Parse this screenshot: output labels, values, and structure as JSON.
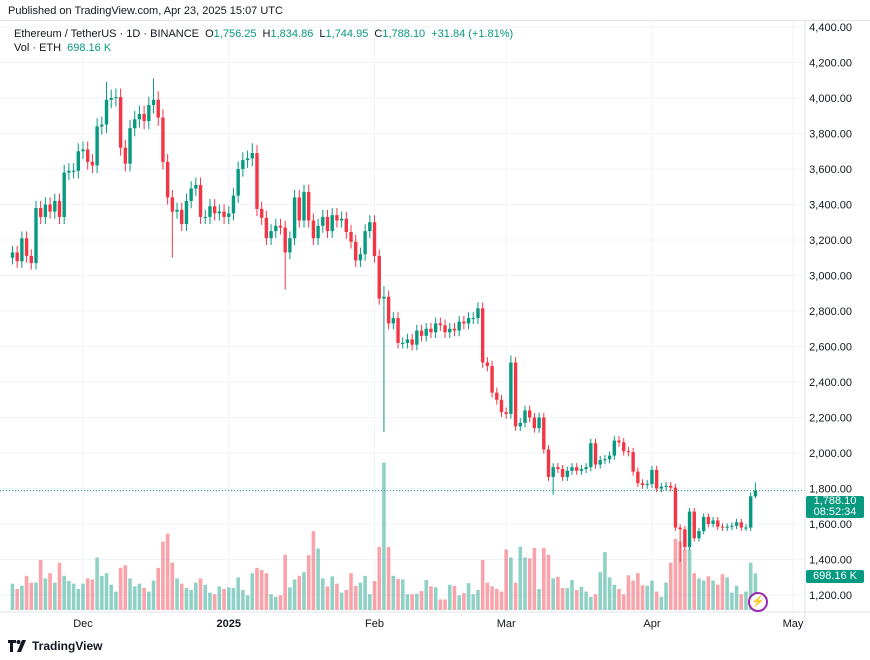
{
  "published": "Published on TradingView.com, Apr 23, 2025 15:07 UTC",
  "legend": {
    "symbol": "Ethereum / TetherUS · 1D · BINANCE",
    "o_label": "O",
    "o": "1,756.25",
    "h_label": "H",
    "h": "1,834.86",
    "l_label": "L",
    "l": "1,744.95",
    "c_label": "C",
    "c": "1,788.10",
    "change": "+31.84 (+1.81%)",
    "vol_label": "Vol · ETH",
    "vol": "698.16 K"
  },
  "price_tag": {
    "price": "1,788.10",
    "countdown": "08:52:34"
  },
  "volume_tag": "698.16 K",
  "logo": "TradingView",
  "colors": {
    "up": "#089981",
    "down": "#f23645",
    "grid": "#f0f3fa"
  },
  "chart_data": {
    "type": "candlestick",
    "ylim": [
      1100,
      4450
    ],
    "y_ticks": [
      "4,400.00",
      "4,200.00",
      "4,000.00",
      "3,800.00",
      "3,600.00",
      "3,400.00",
      "3,200.00",
      "3,000.00",
      "2,800.00",
      "2,600.00",
      "2,400.00",
      "2,200.00",
      "2,000.00",
      "1,800.00",
      "1,600.00",
      "1,400.00",
      "1,200.00"
    ],
    "x_ticks": [
      {
        "label": "Dec",
        "date": "2024-12-01",
        "bold": false
      },
      {
        "label": "2025",
        "date": "2025-01-01",
        "bold": true
      },
      {
        "label": "Feb",
        "date": "2025-02-01",
        "bold": false
      },
      {
        "label": "Mar",
        "date": "2025-03-01",
        "bold": false
      },
      {
        "label": "Apr",
        "date": "2025-04-01",
        "bold": false
      },
      {
        "label": "May",
        "date": "2025-05-01",
        "bold": false
      }
    ],
    "last_price": 1788.1,
    "first_open": 3100,
    "months": [
      {
        "month": "2024-11",
        "first_day": 16,
        "close": [
          3130,
          3080,
          3210,
          3110,
          3070,
          3380,
          3330,
          3400,
          3360,
          3420,
          3330,
          3580,
          3590,
          3590,
          3700
        ],
        "volume_k": [
          500,
          400,
          460,
          650,
          520,
          520,
          950,
          600,
          700,
          520,
          900,
          650,
          550,
          500,
          400
        ]
      },
      {
        "month": "2024-12",
        "first_day": 1,
        "close": [
          3710,
          3640,
          3620,
          3840,
          3850,
          3990,
          4000,
          4005,
          3720,
          3630,
          3830,
          3880,
          3910,
          3870,
          3960,
          3990,
          3890,
          3640,
          3440,
          3360,
          3370,
          3290,
          3420,
          3490,
          3510,
          3330,
          3330,
          3390,
          3350,
          3360,
          3330
        ],
        "volume_k": [
          500,
          600,
          580,
          1000,
          650,
          700,
          480,
          350,
          800,
          850,
          600,
          450,
          500,
          420,
          350,
          560,
          800,
          1300,
          1450,
          900,
          600,
          500,
          420,
          380,
          520,
          600,
          480,
          330,
          300,
          450,
          400
        ]
      },
      {
        "month": "2025-01",
        "first_day": 1,
        "close": [
          3350,
          3450,
          3600,
          3650,
          3660,
          3690,
          3375,
          3325,
          3210,
          3250,
          3280,
          3270,
          3130,
          3210,
          3440,
          3310,
          3470,
          3310,
          3210,
          3280,
          3330,
          3250,
          3340,
          3310,
          3320,
          3245,
          3190,
          3085,
          3120,
          3250,
          3300
        ],
        "volume_k": [
          430,
          420,
          620,
          380,
          280,
          700,
          800,
          760,
          700,
          300,
          250,
          280,
          1050,
          430,
          580,
          650,
          720,
          1040,
          1500,
          1170,
          600,
          450,
          640,
          500,
          330,
          380,
          700,
          460,
          520,
          650,
          300
        ]
      },
      {
        "month": "2025-02",
        "first_day": 1,
        "close": [
          3110,
          2870,
          2880,
          2730,
          2760,
          2620,
          2620,
          2640,
          2610,
          2690,
          2660,
          2700,
          2680,
          2730,
          2720,
          2680,
          2700,
          2690,
          2740,
          2730,
          2760,
          2760,
          2815,
          2510,
          2490,
          2340,
          2300,
          2230
        ],
        "volume_k": [
          550,
          1200,
          2800,
          1200,
          650,
          590,
          580,
          300,
          300,
          310,
          360,
          570,
          450,
          430,
          200,
          200,
          480,
          460,
          280,
          320,
          510,
          300,
          380,
          950,
          520,
          450,
          400,
          350
        ]
      },
      {
        "month": "2025-03",
        "first_day": 1,
        "close": [
          2220,
          2510,
          2150,
          2170,
          2240,
          2200,
          2140,
          2200,
          2020,
          1865,
          1920,
          1910,
          1865,
          1900,
          1920,
          1900,
          1910,
          1920,
          2055,
          1935,
          1960,
          1965,
          1985,
          2070,
          2060,
          2010,
          2005,
          1895,
          1830,
          1820,
          1825
        ],
        "volume_k": [
          1150,
          1000,
          520,
          1200,
          1000,
          980,
          1180,
          400,
          1180,
          1050,
          600,
          630,
          420,
          420,
          570,
          380,
          440,
          350,
          250,
          300,
          720,
          1100,
          620,
          480,
          400,
          300,
          660,
          560,
          700,
          470,
          460
        ]
      },
      {
        "month": "2025-04",
        "first_day": 1,
        "close": [
          1905,
          1800,
          1810,
          1815,
          1805,
          1580,
          1570,
          1470,
          1670,
          1520,
          1560,
          1640,
          1600,
          1620,
          1585,
          1580,
          1585,
          1590,
          1610,
          1580,
          1580,
          1756,
          1788.1
        ],
        "volume_k": [
          560,
          350,
          250,
          520,
          900,
          1350,
          1300,
          1150,
          1150,
          700,
          600,
          560,
          640,
          560,
          480,
          680,
          620,
          330,
          460,
          300,
          350,
          900,
          698.16
        ]
      }
    ],
    "notable_wicks": [
      {
        "date": "2024-12-06",
        "high": 4090
      },
      {
        "date": "2024-12-16",
        "high": 4110
      },
      {
        "date": "2024-12-20",
        "low": 3100
      },
      {
        "date": "2025-01-06",
        "high": 3745
      },
      {
        "date": "2025-01-13",
        "low": 2920
      },
      {
        "date": "2025-02-03",
        "high": 2940,
        "low": 2120
      },
      {
        "date": "2025-03-02",
        "high": 2550
      },
      {
        "date": "2025-03-11",
        "low": 1765
      },
      {
        "date": "2025-04-07",
        "low": 1385
      },
      {
        "date": "2025-04-09",
        "high": 1690
      },
      {
        "date": "2025-04-23",
        "high": 1834.86,
        "low": 1744.95
      }
    ]
  }
}
